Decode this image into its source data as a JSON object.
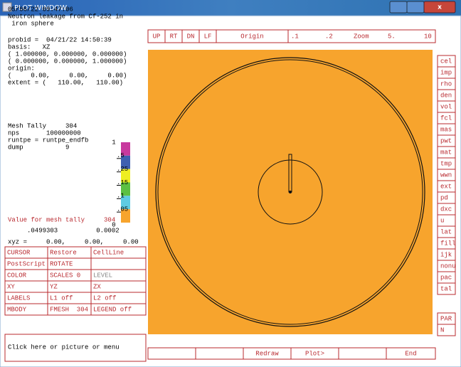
{
  "window": {
    "title": "PLOT WINDOW"
  },
  "header": [
    "05/06/22 09:47:06",
    "Neutron leakage from Cf-252 in",
    " iron sphere"
  ],
  "probid": [
    "probid =  04/21/22 14:50:39",
    "basis:   XZ",
    "( 1.000000, 0.000000, 0.000000)",
    "( 0.000000, 0.000000, 1.000000)",
    "origin:",
    "(     0.00,     0.00,     0.00)",
    "extent = (   110.00,   110.00)"
  ],
  "tally": [
    "Mesh Tally     304",
    "nps       100000000",
    "runtpe = runtpe_endfb",
    "dump           9"
  ],
  "legend": {
    "labels": [
      "1",
      ".5",
      ".25",
      ".15",
      ".1",
      ".05",
      "0"
    ],
    "colors": [
      "#c8399e",
      "#3f5fb0",
      "#eeee22",
      "#5cc043",
      "#5ecbe3",
      "#f7a42d"
    ]
  },
  "value": {
    "title": "Value for mesh tally     304",
    "values": "     .0499303          0.0002",
    "xyz": "xyz =     0.00,     0.00,     0.00"
  },
  "options": [
    [
      "CURSOR",
      "Restore",
      "CellLine"
    ],
    [
      "PostScript",
      "ROTATE"
    ],
    [
      "COLOR",
      "SCALES 0",
      "LEVEL"
    ],
    [
      "XY",
      "YZ",
      "ZX"
    ],
    [
      "LABELS",
      "L1 off",
      "L2 off"
    ],
    [
      "MBODY",
      "FMESH  304",
      "LEGEND off"
    ]
  ],
  "toolbar": [
    "UP",
    "RT",
    "DN",
    "LF",
    "Origin"
  ],
  "zoom": [
    ".1",
    ".2",
    "Zoom",
    "5.",
    "10"
  ],
  "menu": [
    "cel",
    "imp",
    "rho",
    "den",
    "vol",
    "fcl",
    "mas",
    "pwt",
    "mat",
    "tmp",
    "wwn",
    "ext",
    "pd",
    "dxc",
    "u",
    "lat",
    "fill",
    "ijk",
    "nonu",
    "pac",
    "tal"
  ],
  "menu2": [
    "PAR",
    "N"
  ],
  "bottom": [
    "Redraw",
    "Plot>",
    "End"
  ],
  "prompt": "Click here or picture or menu"
}
